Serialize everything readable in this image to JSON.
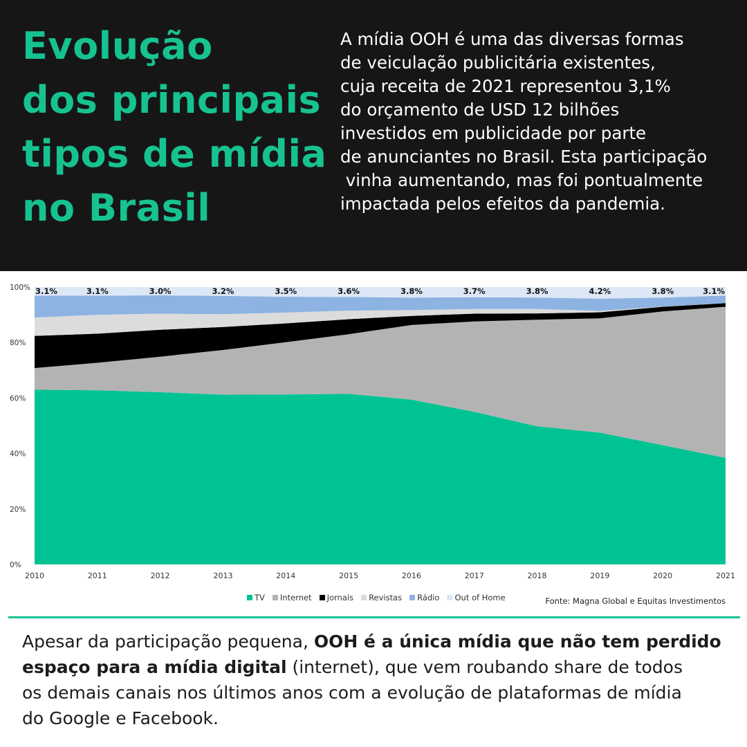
{
  "header": {
    "title_lines": [
      "Evolução",
      "dos principais",
      "tipos de mídia",
      "no Brasil"
    ],
    "intro_lines": [
      "A mídia OOH é uma das diversas formas",
      "de veiculação publicitária existentes,",
      "cuja receita de 2021 representou 3,1%",
      "do orçamento de USD 12 bilhões",
      "investidos em publicidade por parte",
      "de anunciantes no Brasil. Esta participação",
      " vinha aumentando, mas foi pontualmente",
      "impactada pelos efeitos da pandemia."
    ]
  },
  "colors": {
    "accent": "#17c291",
    "header_bg": "#171616",
    "tv": "#00c394",
    "internet": "#b3b3b3",
    "jornais": "#000000",
    "revistas": "#dcdcdc",
    "radio": "#8db3e2",
    "ooh": "#dde8f6"
  },
  "chart_data": {
    "type": "area",
    "stacked": true,
    "x": [
      "2010",
      "2011",
      "2012",
      "2013",
      "2014",
      "2015",
      "2016",
      "2017",
      "2018",
      "2019",
      "2020",
      "2021"
    ],
    "ylim": [
      0,
      100
    ],
    "y_ticks": [
      "0%",
      "20%",
      "40%",
      "60%",
      "80%",
      "100%"
    ],
    "series": [
      {
        "name": "TV",
        "values": [
          63,
          62.8,
          62.1,
          61.2,
          61.3,
          61.5,
          59.4,
          55,
          49.8,
          47.5,
          43,
          38.4
        ]
      },
      {
        "name": "Internet",
        "values": [
          7.8,
          9.9,
          12.8,
          16.1,
          18.8,
          21.5,
          26.9,
          32.6,
          38.4,
          41.2,
          48.2,
          54.5
        ]
      },
      {
        "name": "Jornais",
        "values": [
          11.6,
          10.5,
          9.7,
          8.3,
          6.8,
          5.4,
          3.3,
          2.8,
          2.3,
          2.2,
          1.7,
          1.3
        ]
      },
      {
        "name": "Revistas",
        "values": [
          6.6,
          6.8,
          5.8,
          4.6,
          3.9,
          3.1,
          2.1,
          1.7,
          1.6,
          0.5,
          0.1,
          0
        ]
      },
      {
        "name": "Rádio",
        "values": [
          7.9,
          6.9,
          6.6,
          6.6,
          5.7,
          4.9,
          4.5,
          4.2,
          4.1,
          4.4,
          3.2,
          2.7
        ]
      },
      {
        "name": "Out of Home",
        "values": [
          3.1,
          3.1,
          3.0,
          3.2,
          3.5,
          3.6,
          3.8,
          3.7,
          3.8,
          4.2,
          3.8,
          3.1
        ]
      }
    ],
    "data_labels": [
      "3.1%",
      "3.1%",
      "3.0%",
      "3.2%",
      "3.5%",
      "3.6%",
      "3.8%",
      "3.7%",
      "3.8%",
      "4.2%",
      "3.8%",
      "3.1%"
    ],
    "legend_position": "bottom",
    "grid": false,
    "source": "Fonte: Magna Global e Equitas Investimentos"
  },
  "footer": {
    "line1_normal": "Apesar da participação pequena, ",
    "line1_bold": "OOH é a única mídia que não tem perdido",
    "line2_bold": "espaço para a mídia digital",
    "line2_normal": " (internet), que vem roubando share de todos",
    "line3": "os demais canais nos últimos anos com a evolução de plataformas de mídia",
    "line4": "do Google e Facebook."
  }
}
